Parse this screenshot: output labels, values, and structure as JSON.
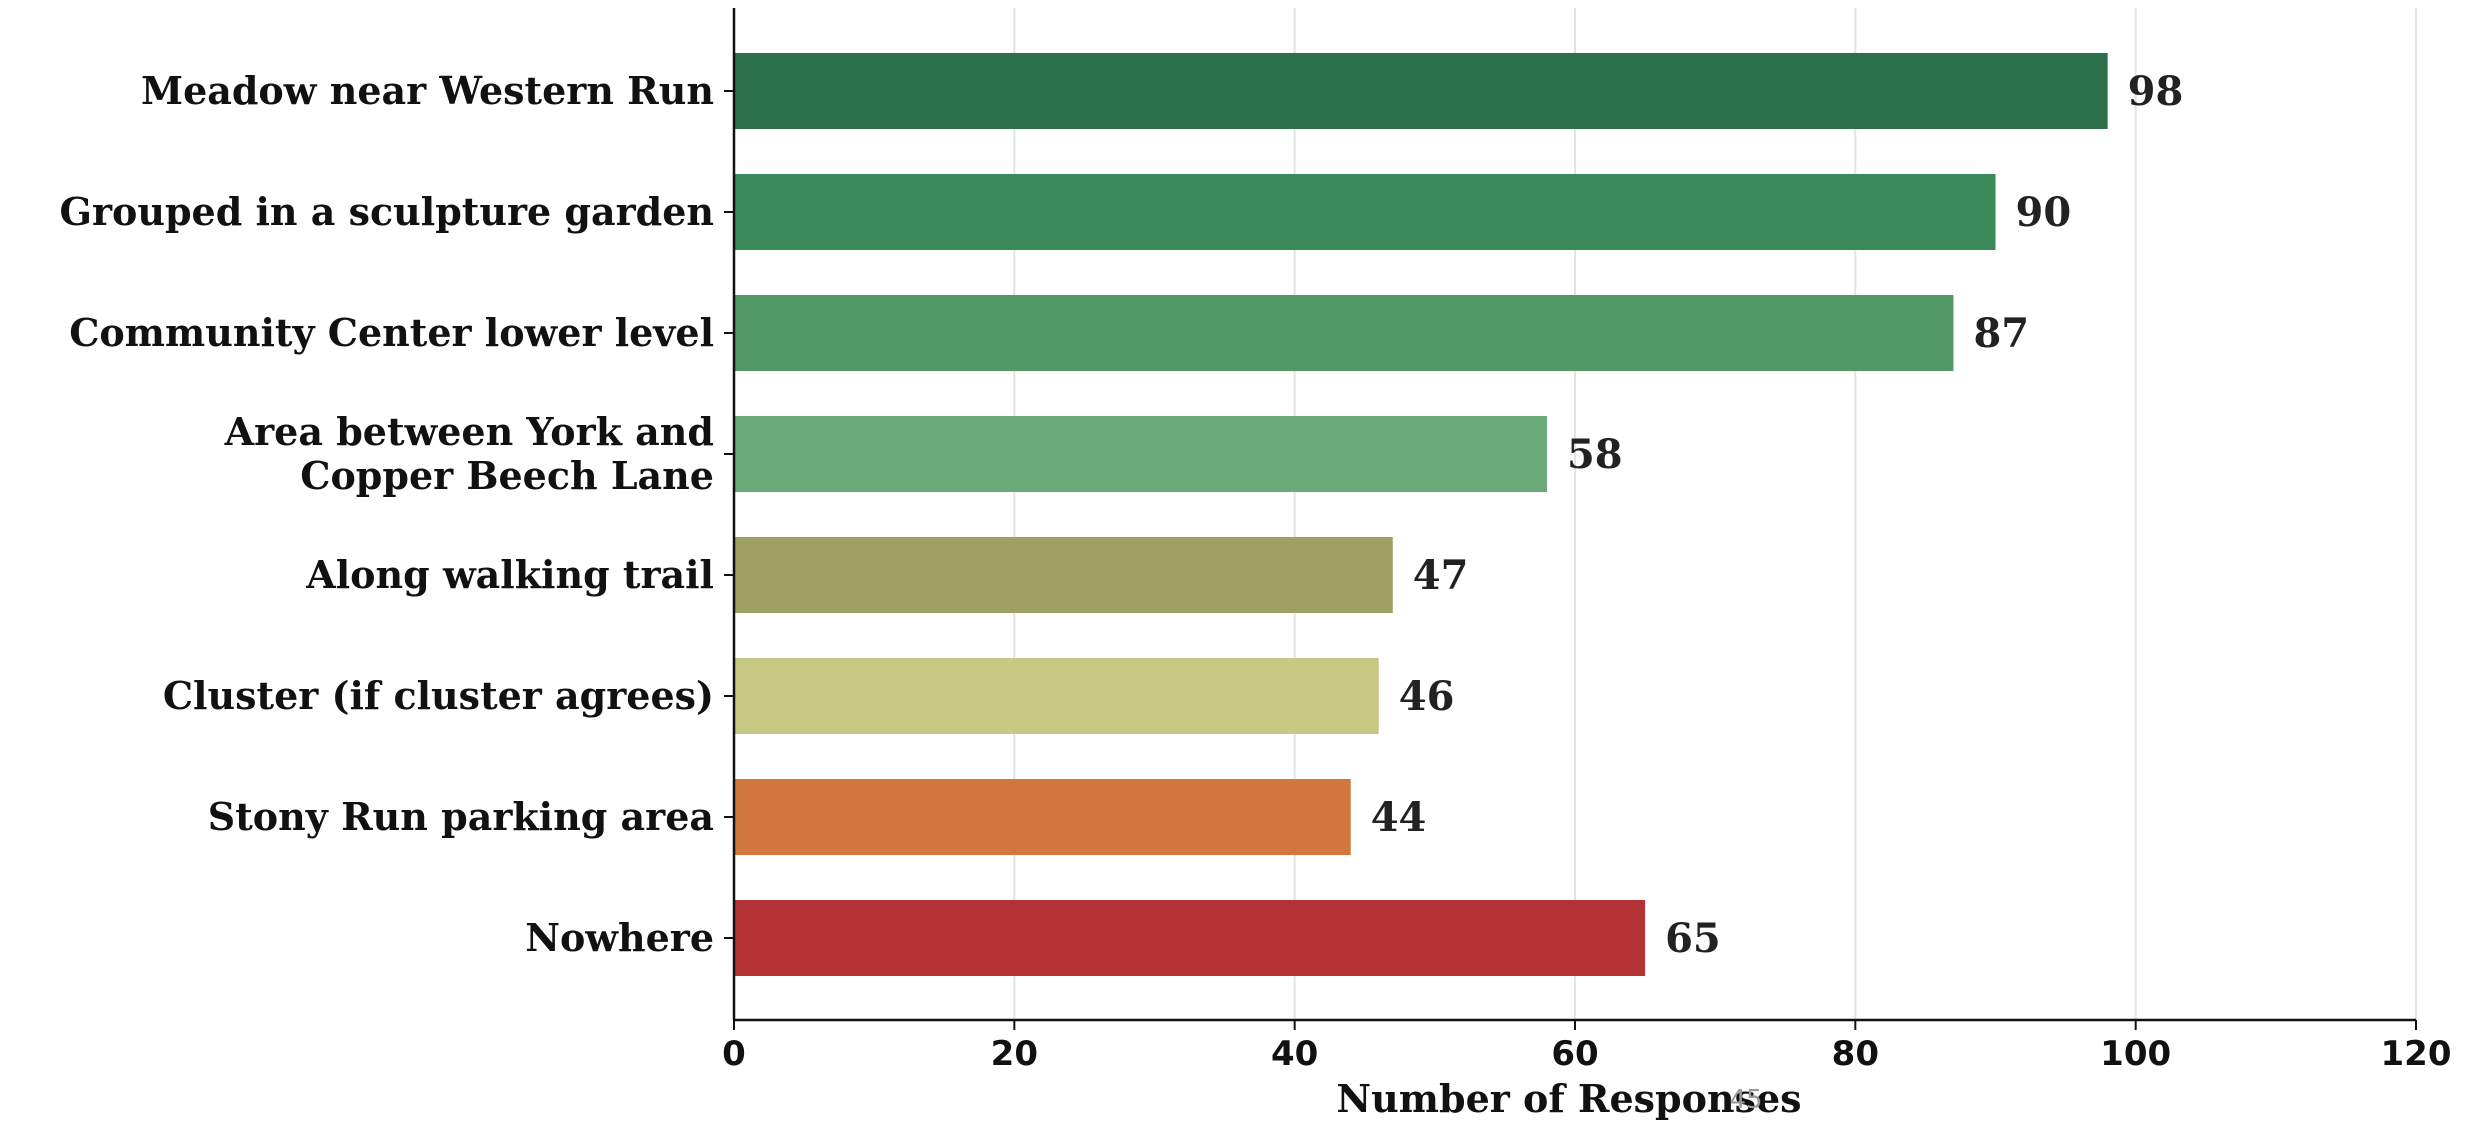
{
  "chart_data": {
    "type": "bar",
    "orientation": "horizontal",
    "title": "",
    "xlabel": "Number of Responses",
    "ylabel": "",
    "xlim": [
      0,
      120
    ],
    "xticks": [
      0,
      20,
      40,
      60,
      80,
      100,
      120
    ],
    "grid": "vertical",
    "legend": "none",
    "categories": [
      [
        "Meadow near Western Run"
      ],
      [
        "Grouped in a sculpture garden"
      ],
      [
        "Community Center lower level"
      ],
      [
        "Area between York and",
        "Copper Beech Lane"
      ],
      [
        "Along walking trail"
      ],
      [
        "Cluster (if cluster agrees)"
      ],
      [
        "Stony Run parking area"
      ],
      [
        "Nowhere"
      ]
    ],
    "values": [
      98,
      90,
      87,
      58,
      47,
      46,
      44,
      65
    ],
    "colors": [
      "#2b704a",
      "#3a8a5a",
      "#519966",
      "#6aa979",
      "#a09f64",
      "#c7c883",
      "#d1773d",
      "#b33335"
    ]
  },
  "page_number": "45"
}
